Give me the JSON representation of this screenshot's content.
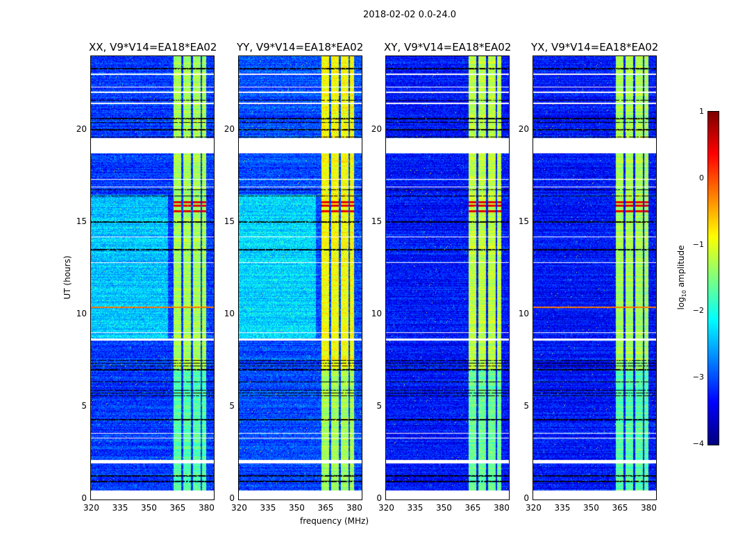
{
  "chart_data": {
    "type": "heatmap",
    "title": "2018-02-02 0.0-24.0",
    "xlabel": "frequency (MHz)",
    "ylabel": "UT (hours)",
    "xlim": [
      320,
      384
    ],
    "ylim": [
      0,
      24
    ],
    "xticks": [
      "320",
      "335",
      "350",
      "365",
      "380"
    ],
    "xtick_values": [
      320,
      335,
      350,
      365,
      380
    ],
    "yticks": [
      "0",
      "5",
      "10",
      "15",
      "20"
    ],
    "ytick_values": [
      0,
      5,
      10,
      15,
      20
    ],
    "panels": [
      {
        "title": "XX, V9*V14=EA18*EA02",
        "band_level": -1.3,
        "bg_level": -3.1,
        "bright_bg": true,
        "line_10_4": true
      },
      {
        "title": "YY, V9*V14=EA18*EA02",
        "band_level": -0.9,
        "bg_level": -3.0,
        "bright_bg": true,
        "line_10_4": false
      },
      {
        "title": "XY, V9*V14=EA18*EA02",
        "band_level": -1.2,
        "bg_level": -3.3,
        "bright_bg": false,
        "line_10_4": false
      },
      {
        "title": "YX, V9*V14=EA18*EA02",
        "band_level": -1.3,
        "bg_level": -3.3,
        "bright_bg": false,
        "line_10_4": true
      }
    ],
    "band_mhz": [
      363,
      380
    ],
    "band_gaps_mhz": [
      367.5,
      372.5,
      377.5
    ],
    "flagged_hours": [
      [
        0,
        0.5
      ],
      [
        1.95,
        2.15
      ],
      [
        3.3,
        3.35
      ],
      [
        3.55,
        3.6
      ],
      [
        18.75,
        19.55
      ],
      [
        21.4,
        21.5
      ],
      [
        22.0,
        22.1
      ],
      [
        22.3,
        22.35
      ],
      [
        23.0,
        23.05
      ],
      [
        17.3,
        17.35
      ],
      [
        16.9,
        16.95
      ],
      [
        8.6,
        8.7
      ],
      [
        9.0,
        9.05
      ],
      [
        12.8,
        12.85
      ],
      [
        14.2,
        14.25
      ]
    ],
    "black_hours": [
      [
        0.95,
        1.0
      ],
      [
        1.25,
        1.3
      ],
      [
        4.3,
        4.35
      ],
      [
        5.6,
        5.65
      ],
      [
        5.75,
        5.8
      ],
      [
        5.9,
        5.95
      ],
      [
        6.35,
        6.4
      ],
      [
        7.0,
        7.05
      ],
      [
        7.2,
        7.25
      ],
      [
        7.35,
        7.4
      ],
      [
        7.5,
        7.55
      ],
      [
        13.5,
        13.55
      ],
      [
        15.0,
        15.05
      ],
      [
        16.4,
        16.45
      ],
      [
        16.75,
        16.8
      ],
      [
        18.8,
        18.85
      ],
      [
        19.6,
        19.65
      ],
      [
        20.0,
        20.05
      ],
      [
        20.4,
        20.45
      ],
      [
        20.6,
        20.65
      ],
      [
        21.6,
        21.65
      ],
      [
        23.3,
        23.35
      ]
    ],
    "hot_rows_hours": [
      15.6,
      15.9,
      16.1
    ],
    "colorbar": {
      "label": "log",
      "label_sub": "10",
      "label_rest": " amplitude",
      "range": [
        -4,
        1
      ],
      "ticks": [
        "1",
        "0",
        "−1",
        "−2",
        "−3",
        "−4"
      ],
      "tick_values": [
        1,
        0,
        -1,
        -2,
        -3,
        -4
      ],
      "colormap": "jet"
    }
  }
}
